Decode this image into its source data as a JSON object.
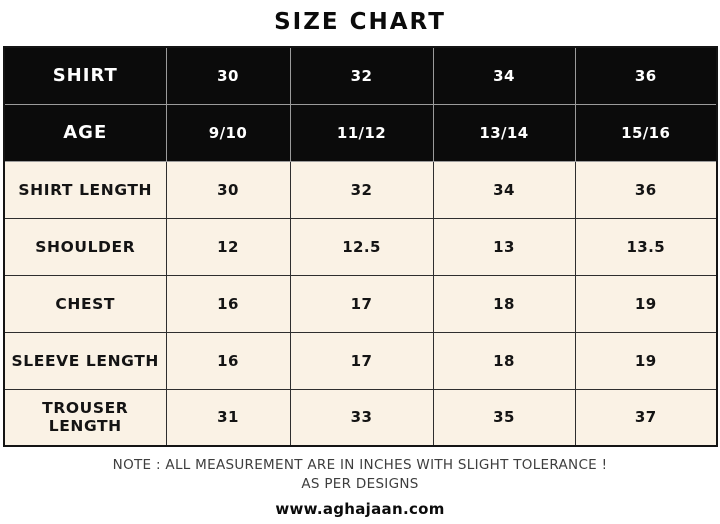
{
  "chart_data": {
    "type": "table",
    "title": "SIZE CHART",
    "header_rows": [
      {
        "label": "SHIRT",
        "values": [
          "30",
          "32",
          "34",
          "36"
        ]
      },
      {
        "label": "AGE",
        "values": [
          "9/10",
          "11/12",
          "13/14",
          "15/16"
        ]
      }
    ],
    "rows": [
      {
        "label": "SHIRT LENGTH",
        "values": [
          "30",
          "32",
          "34",
          "36"
        ]
      },
      {
        "label": "SHOULDER",
        "values": [
          "12",
          "12.5",
          "13",
          "13.5"
        ]
      },
      {
        "label": "CHEST",
        "values": [
          "16",
          "17",
          "18",
          "19"
        ]
      },
      {
        "label": "SLEEVE LENGTH",
        "values": [
          "16",
          "17",
          "18",
          "19"
        ]
      },
      {
        "label": "TROUSER LENGTH",
        "values": [
          "31",
          "33",
          "35",
          "37"
        ]
      }
    ],
    "units": "inches"
  },
  "footer": {
    "note_line1": "NOTE : ALL MEASUREMENT ARE IN INCHES WITH SLIGHT TOLERANCE !",
    "note_line2": "AS PER DESIGNS",
    "website": "www.aghajaan.com"
  },
  "colors": {
    "header_bg": "#0b0b0b",
    "header_text": "#ffffff",
    "body_bg": "#faf2e5",
    "body_text": "#141414",
    "grid_dark": "#2e2e2e",
    "grid_light": "#9b9b9b",
    "note_text": "#3e3e3e",
    "page_bg": "#ffffff"
  }
}
